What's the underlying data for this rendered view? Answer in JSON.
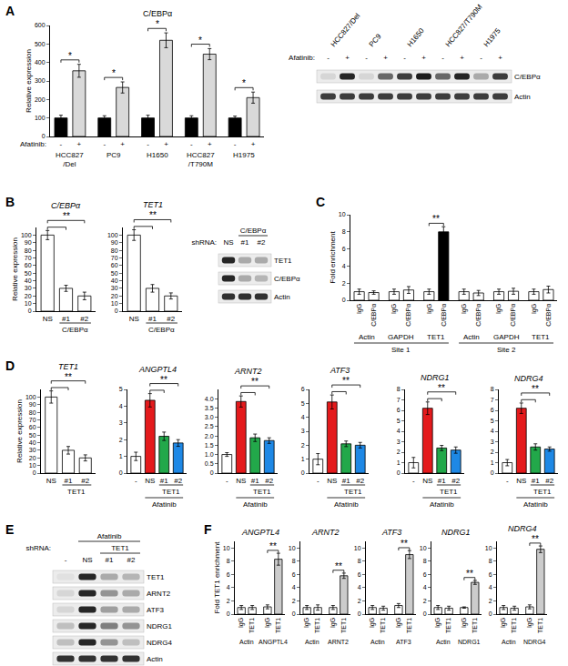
{
  "panel_labels": [
    "A",
    "B",
    "C",
    "D",
    "E",
    "F"
  ],
  "chart_data": [
    {
      "type": "bar",
      "title": "C/EBPα",
      "y_label": "Relative expression",
      "x_label": "Afatinib:",
      "grid": false,
      "categories": [
        "-",
        "+",
        "-",
        "+",
        "-",
        "+",
        "-",
        "+",
        "-",
        "+"
      ],
      "values": [
        100,
        355,
        100,
        265,
        100,
        520,
        100,
        445,
        100,
        210
      ],
      "errors": [
        15,
        35,
        12,
        30,
        15,
        40,
        12,
        30,
        10,
        30
      ],
      "colors": [
        "#000000",
        "#d9d9d9",
        "#000000",
        "#d9d9d9",
        "#000000",
        "#d9d9d9",
        "#000000",
        "#d9d9d9",
        "#000000",
        "#d9d9d9"
      ],
      "groups": [
        {
          "text": "HCC827/Del",
          "from": 0,
          "to": 1
        },
        {
          "text": "PC9",
          "from": 2,
          "to": 3
        },
        {
          "text": "H1650",
          "from": 4,
          "to": 5
        },
        {
          "text": "HCC827/T790M",
          "from": 6,
          "to": 7
        },
        {
          "text": "H1975",
          "from": 8,
          "to": 9
        }
      ],
      "significance": [
        {
          "text": "*",
          "from": 0,
          "to": 1
        },
        {
          "text": "*",
          "from": 2,
          "to": 3
        },
        {
          "text": "*",
          "from": 4,
          "to": 5
        },
        {
          "text": "*",
          "from": 6,
          "to": 7
        },
        {
          "text": "*",
          "from": 8,
          "to": 9
        }
      ],
      "ylim": [
        0,
        600
      ],
      "yticks": [
        0,
        100,
        200,
        300,
        400,
        500,
        600
      ]
    },
    {
      "type": "bar",
      "title": "C/EBPα",
      "y_label": "Relative expression",
      "grid": false,
      "categories": [
        "NS",
        "#1",
        "#2"
      ],
      "values": [
        100,
        30,
        20
      ],
      "errors": [
        6,
        4,
        5
      ],
      "colors": [
        "#ffffff",
        "#ffffff",
        "#ffffff"
      ],
      "groups": [
        {
          "text": "C/EBPα",
          "from": 1,
          "to": 2
        }
      ],
      "significance": [
        {
          "text": "**",
          "from": 0,
          "to": [
            1,
            2
          ]
        }
      ],
      "ylim": [
        0,
        110
      ],
      "yticks": [
        0,
        10,
        20,
        30,
        40,
        50,
        60,
        70,
        80,
        90,
        100
      ]
    },
    {
      "type": "bar",
      "title": "TET1",
      "grid": false,
      "categories": [
        "NS",
        "#1",
        "#2"
      ],
      "values": [
        100,
        30,
        20
      ],
      "errors": [
        7,
        5,
        4
      ],
      "colors": [
        "#ffffff",
        "#ffffff",
        "#ffffff"
      ],
      "groups": [
        {
          "text": "C/EBPα",
          "from": 1,
          "to": 2
        }
      ],
      "significance": [
        {
          "text": "**",
          "from": 0,
          "to": [
            1,
            2
          ]
        }
      ],
      "ylim": [
        0,
        110
      ],
      "yticks": [
        0,
        10,
        20,
        30,
        40,
        50,
        60,
        70,
        80,
        90,
        100
      ]
    },
    {
      "type": "bar",
      "y_label": "Fold enrichment",
      "grid": false,
      "categories": [
        "IgG",
        "C/EBPα",
        "IgG",
        "C/EBPα",
        "IgG",
        "C/EBPα",
        "IgG",
        "C/EBPα",
        "IgG",
        "C/EBPα",
        "IgG",
        "C/EBPα"
      ],
      "values": [
        1,
        0.9,
        1,
        1.2,
        1,
        8,
        1,
        0.85,
        1,
        1.05,
        1,
        1.25
      ],
      "errors": [
        0.3,
        0.2,
        0.3,
        0.4,
        0.3,
        0.6,
        0.3,
        0.3,
        0.3,
        0.35,
        0.3,
        0.4
      ],
      "colors": [
        "#ffffff",
        "#ffffff",
        "#ffffff",
        "#ffffff",
        "#ffffff",
        "#000000",
        "#ffffff",
        "#ffffff",
        "#ffffff",
        "#ffffff",
        "#ffffff",
        "#ffffff"
      ],
      "groups": [
        {
          "text": "Actin",
          "from": 0,
          "to": 1
        },
        {
          "text": "GAPDH",
          "from": 2,
          "to": 3
        },
        {
          "text": "TET1",
          "from": 4,
          "to": 5
        },
        {
          "text": "Actin",
          "from": 6,
          "to": 7
        },
        {
          "text": "GAPDH",
          "from": 8,
          "to": 9
        },
        {
          "text": "TET1",
          "from": 10,
          "to": 11
        }
      ],
      "groups2": [
        {
          "text": "Site 1",
          "from": 0,
          "to": 5
        },
        {
          "text": "Site 2",
          "from": 6,
          "to": 11
        }
      ],
      "significance": [
        {
          "text": "**",
          "from": 4,
          "to": 5
        }
      ],
      "ylim": [
        0,
        10
      ],
      "yticks": [
        0,
        2,
        4,
        6,
        8,
        10
      ]
    },
    {
      "type": "bar",
      "title": "TET1",
      "y_label": "Relative expression",
      "grid": false,
      "categories": [
        "NS",
        "#1",
        "#2"
      ],
      "values": [
        100,
        30,
        20
      ],
      "errors": [
        8,
        5,
        4
      ],
      "colors": [
        "#ffffff",
        "#ffffff",
        "#ffffff"
      ],
      "groups": [
        {
          "text": "TET1",
          "from": 1,
          "to": 2
        }
      ],
      "significance": [
        {
          "text": "**",
          "from": 0,
          "to": [
            1,
            2
          ]
        }
      ],
      "ylim": [
        0,
        110
      ],
      "yticks": [
        0,
        10,
        20,
        30,
        40,
        50,
        60,
        70,
        80,
        90,
        100
      ]
    },
    {
      "type": "bar",
      "title": "ANGPTL4",
      "grid": false,
      "categories": [
        "-",
        "NS",
        "#1",
        "#2"
      ],
      "values": [
        1,
        4.35,
        2.2,
        1.8
      ],
      "errors": [
        0.25,
        0.4,
        0.25,
        0.2
      ],
      "colors": [
        "#ffffff",
        "#e41a1c",
        "#22a84a",
        "#1e88e5"
      ],
      "groups": [
        {
          "text": "TET1",
          "from": 2,
          "to": 3
        }
      ],
      "groups2": [
        {
          "text": "Afatinib",
          "from": 1,
          "to": 3
        }
      ],
      "significance": [
        {
          "text": "**",
          "from": 1,
          "to": [
            2,
            3
          ]
        }
      ],
      "ylim": [
        0,
        5
      ],
      "yticks": [
        0,
        1,
        2,
        3,
        4,
        5
      ]
    },
    {
      "type": "bar",
      "title": "ARNT2",
      "grid": false,
      "categories": [
        "-",
        "NS",
        "#1",
        "#2"
      ],
      "values": [
        1,
        3.85,
        1.9,
        1.75
      ],
      "errors": [
        0.1,
        0.3,
        0.2,
        0.15
      ],
      "colors": [
        "#ffffff",
        "#e41a1c",
        "#22a84a",
        "#1e88e5"
      ],
      "groups": [
        {
          "text": "TET1",
          "from": 2,
          "to": 3
        }
      ],
      "groups2": [
        {
          "text": "Afatinib",
          "from": 1,
          "to": 3
        }
      ],
      "significance": [
        {
          "text": "**",
          "from": 1,
          "to": [
            2,
            3
          ]
        }
      ],
      "ylim": [
        0,
        4.5
      ],
      "yticks": [
        0,
        0.5,
        {
          "value": 1,
          "label": "1.0"
        },
        1.5,
        {
          "value": 2,
          "label": "2.0"
        },
        2.5,
        {
          "value": 3,
          "label": "3.0"
        },
        3.5,
        {
          "value": 4,
          "label": "4.0"
        }
      ]
    },
    {
      "type": "bar",
      "title": "ATF3",
      "grid": false,
      "categories": [
        "-",
        "NS",
        "#1",
        "#2"
      ],
      "values": [
        1,
        5.1,
        2.1,
        2.0
      ],
      "errors": [
        0.4,
        0.5,
        0.2,
        0.2
      ],
      "colors": [
        "#ffffff",
        "#e41a1c",
        "#22a84a",
        "#1e88e5"
      ],
      "groups": [
        {
          "text": "TET1",
          "from": 2,
          "to": 3
        }
      ],
      "groups2": [
        {
          "text": "Afatinib",
          "from": 1,
          "to": 3
        }
      ],
      "significance": [
        {
          "text": "**",
          "from": 1,
          "to": [
            2,
            3
          ]
        }
      ],
      "ylim": [
        0,
        6
      ],
      "yticks": [
        0,
        1,
        2,
        3,
        4,
        5,
        6
      ]
    },
    {
      "type": "bar",
      "title": "NDRG1",
      "grid": false,
      "categories": [
        "-",
        "NS",
        "#1",
        "#2"
      ],
      "values": [
        1,
        6.2,
        2.4,
        2.2
      ],
      "errors": [
        0.5,
        0.6,
        0.25,
        0.3
      ],
      "colors": [
        "#ffffff",
        "#e41a1c",
        "#22a84a",
        "#1e88e5"
      ],
      "groups": [
        {
          "text": "TET1",
          "from": 2,
          "to": 3
        }
      ],
      "groups2": [
        {
          "text": "Afatinib",
          "from": 1,
          "to": 3
        }
      ],
      "significance": [
        {
          "text": "**",
          "from": 1,
          "to": [
            2,
            3
          ]
        }
      ],
      "ylim": [
        0,
        8
      ],
      "yticks": [
        0,
        1,
        2,
        3,
        4,
        5,
        6,
        7,
        8
      ]
    },
    {
      "type": "bar",
      "title": "NDRG4",
      "grid": false,
      "categories": [
        "-",
        "NS",
        "#1",
        "#2"
      ],
      "values": [
        1,
        6.2,
        2.5,
        2.3
      ],
      "errors": [
        0.3,
        0.5,
        0.3,
        0.2
      ],
      "colors": [
        "#ffffff",
        "#e41a1c",
        "#22a84a",
        "#1e88e5"
      ],
      "groups": [
        {
          "text": "TET1",
          "from": 2,
          "to": 3
        }
      ],
      "groups2": [
        {
          "text": "Afatinib",
          "from": 1,
          "to": 3
        }
      ],
      "significance": [
        {
          "text": "**",
          "from": 1,
          "to": [
            2,
            3
          ]
        }
      ],
      "ylim": [
        0,
        8
      ],
      "yticks": [
        0,
        1,
        2,
        3,
        4,
        5,
        6,
        7,
        8
      ]
    },
    {
      "type": "bar",
      "title": "ANGPTL4",
      "y_label": "Fold TET1 enrichment",
      "grid": false,
      "categories": [
        "IgG",
        "TET1",
        "IgG",
        "TET1"
      ],
      "values": [
        1,
        1,
        1.1,
        8.3
      ],
      "errors": [
        0.3,
        0.3,
        0.3,
        0.9
      ],
      "colors": [
        "#ffffff",
        "#ffffff",
        "#ffffff",
        "#cccccc"
      ],
      "groups": [
        {
          "text": "Actin",
          "from": 0,
          "to": 1
        },
        {
          "text": "ANGPTL4",
          "from": 2,
          "to": 3
        }
      ],
      "significance": [
        {
          "text": "**",
          "from": 2,
          "to": 3
        }
      ],
      "ylim": [
        0,
        11
      ],
      "yticks": [
        0,
        2,
        4,
        6,
        8,
        10
      ]
    },
    {
      "type": "bar",
      "title": "ARNT2",
      "grid": false,
      "categories": [
        "IgG",
        "TET1",
        "IgG",
        "TET1"
      ],
      "values": [
        1,
        1,
        1,
        5.8
      ],
      "errors": [
        0.3,
        0.4,
        0.3,
        0.4
      ],
      "colors": [
        "#ffffff",
        "#ffffff",
        "#ffffff",
        "#cccccc"
      ],
      "groups": [
        {
          "text": "Actin",
          "from": 0,
          "to": 1
        },
        {
          "text": "ARNT2",
          "from": 2,
          "to": 3
        }
      ],
      "significance": [
        {
          "text": "**",
          "from": 2,
          "to": 3
        }
      ],
      "ylim": [
        0,
        11
      ],
      "yticks": [
        0,
        2,
        4,
        6,
        8,
        10
      ]
    },
    {
      "type": "bar",
      "title": "ATF3",
      "grid": false,
      "categories": [
        "IgG",
        "TET1",
        "IgG",
        "TET1"
      ],
      "values": [
        1,
        0.9,
        1.3,
        9
      ],
      "errors": [
        0.3,
        0.3,
        0.3,
        0.6
      ],
      "colors": [
        "#ffffff",
        "#ffffff",
        "#ffffff",
        "#cccccc"
      ],
      "groups": [
        {
          "text": "Actin",
          "from": 0,
          "to": 1
        },
        {
          "text": "ATF3",
          "from": 2,
          "to": 3
        }
      ],
      "significance": [
        {
          "text": "**",
          "from": 2,
          "to": 3
        }
      ],
      "ylim": [
        0,
        11
      ],
      "yticks": [
        0,
        2,
        4,
        6,
        8,
        10
      ]
    },
    {
      "type": "bar",
      "title": "NDRG1",
      "grid": false,
      "categories": [
        "IgG",
        "TET1",
        "IgG",
        "TET1"
      ],
      "values": [
        1,
        0.9,
        1,
        4.8
      ],
      "errors": [
        0.3,
        0.3,
        0.1,
        0.3
      ],
      "colors": [
        "#ffffff",
        "#ffffff",
        "#ffffff",
        "#cccccc"
      ],
      "groups": [
        {
          "text": "Actin",
          "from": 0,
          "to": 1
        },
        {
          "text": "NDRG1",
          "from": 2,
          "to": 3
        }
      ],
      "significance": [
        {
          "text": "**",
          "from": 2,
          "to": 3
        }
      ],
      "ylim": [
        0,
        11
      ],
      "yticks": [
        0,
        2,
        4,
        6,
        8,
        10
      ]
    },
    {
      "type": "bar",
      "title": "NDRG4",
      "grid": false,
      "categories": [
        "IgG",
        "TET1",
        "IgG",
        "TET1"
      ],
      "values": [
        1,
        0.9,
        1.1,
        9.8
      ],
      "errors": [
        0.3,
        0.3,
        0.3,
        0.5
      ],
      "colors": [
        "#ffffff",
        "#ffffff",
        "#ffffff",
        "#cccccc"
      ],
      "groups": [
        {
          "text": "Actin",
          "from": 0,
          "to": 1
        },
        {
          "text": "NDRG4",
          "from": 2,
          "to": 3
        }
      ],
      "significance": [
        {
          "text": "**",
          "from": 2,
          "to": 3
        }
      ],
      "ylim": [
        0,
        11
      ],
      "yticks": [
        0,
        2,
        4,
        6,
        8,
        10
      ]
    }
  ],
  "blots": [
    {
      "header_rows": [
        {
          "items": [
            {
              "text": "HCC827/Del",
              "from": 0,
              "to": 1
            },
            {
              "text": "PC9",
              "from": 2,
              "to": 3
            },
            {
              "text": "H1650",
              "from": 4,
              "to": 5
            },
            {
              "text": "HCC827/T790M",
              "from": 6,
              "to": 7
            },
            {
              "text": "H1975",
              "from": 8,
              "to": 9
            }
          ]
        }
      ],
      "lane_label": "Afatinib:",
      "lanes": [
        "-",
        "+",
        "-",
        "+",
        "-",
        "+",
        "-",
        "+",
        "-",
        "+"
      ],
      "rows": [
        {
          "label": "C/EBPα",
          "bands": [
            0.1,
            0.9,
            0.1,
            0.6,
            0.8,
            0.95,
            0.6,
            0.9,
            0.3,
            0.8
          ]
        },
        {
          "label": "Actin",
          "bands": [
            0.8,
            0.8,
            0.8,
            0.8,
            0.8,
            0.8,
            0.8,
            0.8,
            0.8,
            0.8
          ]
        }
      ]
    },
    {
      "header_rows": [
        {
          "items": [
            {
              "text": "C/EBPα",
              "from": 1,
              "to": 2
            }
          ]
        }
      ],
      "lane_label": "shRNA:",
      "lanes": [
        "NS",
        "#1",
        "#2"
      ],
      "rows": [
        {
          "label": "TET1",
          "bands": [
            0.9,
            0.3,
            0.3
          ]
        },
        {
          "label": "C/EBPα",
          "bands": [
            0.9,
            0.3,
            0.25
          ]
        },
        {
          "label": "Actin",
          "bands": [
            0.85,
            0.85,
            0.85
          ]
        }
      ]
    },
    {
      "header_rows": [
        {
          "items": [
            {
              "text": "Afatinib",
              "from": 1,
              "to": 3
            }
          ]
        },
        {
          "label": "shRNA:",
          "items": [
            {
              "text": "TET1",
              "from": 2,
              "to": 3
            }
          ]
        }
      ],
      "lanes": [
        "-",
        "NS",
        "#1",
        "#2"
      ],
      "rows": [
        {
          "label": "TET1",
          "bands": [
            0.05,
            0.9,
            0.3,
            0.25
          ]
        },
        {
          "label": "ARNT2",
          "bands": [
            0.1,
            0.9,
            0.4,
            0.3
          ]
        },
        {
          "label": "ATF3",
          "bands": [
            0.1,
            0.9,
            0.35,
            0.3
          ]
        },
        {
          "label": "NDRG1",
          "bands": [
            0.2,
            0.9,
            0.5,
            0.4
          ]
        },
        {
          "label": "NDRG4",
          "bands": [
            0.2,
            0.9,
            0.4,
            0.2
          ]
        },
        {
          "label": "Actin",
          "bands": [
            0.85,
            0.85,
            0.85,
            0.85
          ]
        }
      ]
    }
  ]
}
